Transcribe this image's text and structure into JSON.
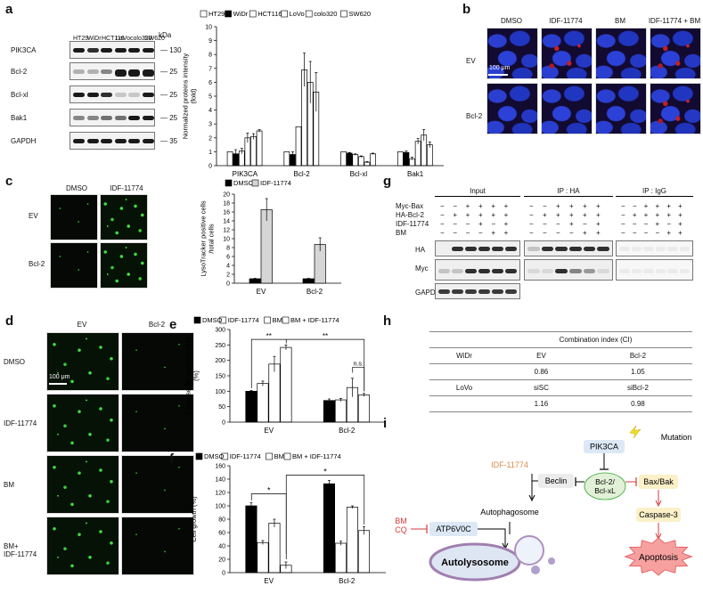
{
  "panel_labels": {
    "a": "a",
    "b": "b",
    "c": "c",
    "d": "d",
    "e": "e",
    "f": "f",
    "g": "g",
    "h": "h",
    "i": "i"
  },
  "panel_a": {
    "lanes": [
      "HT29",
      "WiDr",
      "HCT116",
      "LoVo",
      "colo320",
      "SW620"
    ],
    "rows": [
      {
        "name": "PIK3CA",
        "kda": "130"
      },
      {
        "name": "Bcl-2",
        "kda": "25"
      },
      {
        "name": "Bcl-xl",
        "kda": "25"
      },
      {
        "name": "Bak1",
        "kda": "25"
      },
      {
        "name": "GAPDH",
        "kda": "35"
      }
    ],
    "kda_header": "kDa"
  },
  "panel_b": {
    "cols": [
      "DMSO",
      "IDF-11774",
      "BM",
      "IDF-11774 + BM"
    ],
    "rows": [
      "EV",
      "Bcl-2"
    ],
    "scale": "100 μm"
  },
  "panel_c": {
    "cols": [
      "DMSO",
      "IDF-11774"
    ],
    "rows": [
      "EV",
      "Bcl-2"
    ]
  },
  "panel_d": {
    "cols": [
      "EV",
      "Bcl-2"
    ],
    "rows": [
      "DMSO",
      "IDF-11774",
      "BM",
      "BM+\nIDF-11774"
    ],
    "scale": "100 μm"
  },
  "panel_g": {
    "groups": [
      "Input",
      "IP : HA",
      "IP : IgG"
    ],
    "conditions": [
      {
        "name": "Myc-Bax",
        "signs": [
          "−",
          "−",
          "+",
          "+",
          "+",
          "+"
        ]
      },
      {
        "name": "HA-Bcl-2",
        "signs": [
          "−",
          "+",
          "+",
          "+",
          "+",
          "+"
        ]
      },
      {
        "name": "IDF-11774",
        "signs": [
          "−",
          "−",
          "−",
          "+",
          "−",
          "+"
        ]
      },
      {
        "name": "BM",
        "signs": [
          "−",
          "−",
          "−",
          "−",
          "+",
          "+"
        ]
      }
    ],
    "blot_rows": [
      "HA",
      "Myc",
      "GAPDH"
    ]
  },
  "panel_h": {
    "header": "Combination index (CI)",
    "rows": [
      {
        "cell": "WiDr",
        "a": "EV",
        "b": "Bcl-2"
      },
      {
        "cell": "",
        "a": "0.86",
        "b": "1.05"
      },
      {
        "cell": "LoVo",
        "a": "siSC",
        "b": "siBcl-2"
      },
      {
        "cell": "",
        "a": "1.16",
        "b": "0.98"
      }
    ]
  },
  "panel_i": {
    "nodes": {
      "pik3ca": "PIK3CA",
      "mutation": "Mutation",
      "idf": "IDF-11774",
      "beclin": "Beclin",
      "bcl": "Bcl-2/\nBcl-xL",
      "baxbak": "Bax/Bak",
      "autophagosome": "Autophagosome",
      "bm": "BM",
      "cq": "CQ",
      "atp": "ATP6V0C",
      "caspase": "Caspase-3",
      "autolysosome": "Autolysosome",
      "apoptosis": "Apoptosis"
    }
  },
  "chart_data": [
    {
      "id": "a",
      "type": "bar",
      "ylabel": "Normalized proteins intensity\n(fold)",
      "ylim": [
        0,
        10
      ],
      "yticks": [
        0,
        1,
        2,
        3,
        4,
        5,
        6,
        7,
        8,
        9,
        10
      ],
      "categories": [
        "PIK3CA",
        "Bcl-2",
        "Bcl-xl",
        "Bak1"
      ],
      "legend": "top",
      "series": [
        {
          "name": "HT29",
          "values": [
            1.0,
            1.0,
            1.0,
            1.0
          ],
          "err": [
            0,
            0,
            0,
            0
          ]
        },
        {
          "name": "WiDr",
          "values": [
            0.85,
            0.8,
            0.9,
            0.95
          ],
          "err": [
            0.3,
            0.2,
            0.05,
            0.1
          ]
        },
        {
          "name": "HCT116",
          "values": [
            1.05,
            2.8,
            0.8,
            0.5
          ],
          "err": [
            0.2,
            0,
            0.05,
            0.1
          ]
        },
        {
          "name": "LoVo",
          "values": [
            2.0,
            6.9,
            0.65,
            1.75
          ],
          "err": [
            0.35,
            1.2,
            0.05,
            0.2
          ]
        },
        {
          "name": "colo320",
          "values": [
            2.1,
            6.0,
            0.25,
            2.2
          ],
          "err": [
            0.2,
            1.5,
            0.05,
            0.4
          ]
        },
        {
          "name": "SW620",
          "values": [
            2.5,
            5.3,
            0.85,
            1.5
          ],
          "err": [
            0.1,
            1.4,
            0.05,
            0.2
          ]
        }
      ]
    },
    {
      "id": "c",
      "type": "bar",
      "ylabel": "LysoTracker positive cells\n/total cells",
      "ylim": [
        0,
        20
      ],
      "yticks": [
        0,
        2,
        4,
        6,
        8,
        10,
        12,
        14,
        16,
        18,
        20
      ],
      "categories": [
        "EV",
        "Bcl-2"
      ],
      "legend": "top",
      "series": [
        {
          "name": "DMSO",
          "values": [
            1.0,
            1.0
          ],
          "err": [
            0.1,
            0.1
          ]
        },
        {
          "name": "IDF-11774",
          "values": [
            16.5,
            8.7
          ],
          "err": [
            2.5,
            1.5
          ]
        }
      ]
    },
    {
      "id": "e",
      "type": "bar",
      "ylabel": "Caspase-3/7 positive cells\n(%)",
      "ylim": [
        0,
        300
      ],
      "yticks": [
        0,
        50,
        100,
        150,
        200,
        250,
        300
      ],
      "categories": [
        "EV",
        "Bcl-2"
      ],
      "legend": "top",
      "annotations": [
        "**",
        "**",
        "n.s."
      ],
      "series": [
        {
          "name": "DMSO",
          "values": [
            100,
            70
          ],
          "err": [
            3,
            5
          ]
        },
        {
          "name": "IDF-11774",
          "values": [
            125,
            72
          ],
          "err": [
            8,
            5
          ]
        },
        {
          "name": "BM",
          "values": [
            188,
            112
          ],
          "err": [
            25,
            30
          ]
        },
        {
          "name": "BM + IDF-11774",
          "values": [
            242,
            88
          ],
          "err": [
            8,
            5
          ]
        }
      ]
    },
    {
      "id": "f",
      "type": "bar",
      "ylabel": "Cell growth (%)",
      "ylim": [
        0,
        160
      ],
      "yticks": [
        0,
        20,
        40,
        60,
        80,
        100,
        120,
        140,
        160
      ],
      "categories": [
        "EV",
        "Bcl-2"
      ],
      "legend": "top",
      "annotations": [
        "*",
        "*"
      ],
      "series": [
        {
          "name": "DMSO",
          "values": [
            100,
            133
          ],
          "err": [
            5,
            5
          ]
        },
        {
          "name": "IDF-11774",
          "values": [
            45,
            44
          ],
          "err": [
            3,
            3
          ]
        },
        {
          "name": "BM",
          "values": [
            74,
            98
          ],
          "err": [
            6,
            2
          ]
        },
        {
          "name": "BM + IDF-11774",
          "values": [
            11,
            63
          ],
          "err": [
            5,
            6
          ]
        }
      ]
    }
  ],
  "colors": {
    "tan": "#e5a06a",
    "lightgreen": "#e2f0d7",
    "lightblue": "#dce8f5",
    "yellow": "#fbf0c8",
    "red": "#d83a3a",
    "gray": "#ececec"
  }
}
